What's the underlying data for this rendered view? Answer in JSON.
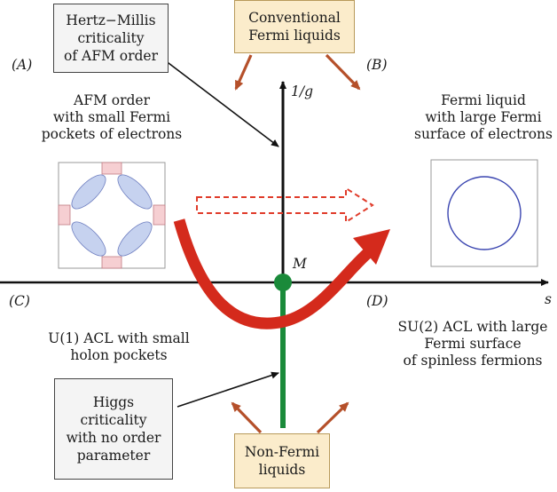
{
  "boxes": {
    "hertz_millis": "Hertz−Millis\ncriticality\nof AFM order",
    "conventional": "Conventional\nFermi liquids",
    "higgs": "Higgs\ncriticality\nwith no order\nparameter",
    "non_fermi": "Non-Fermi\nliquids"
  },
  "quadrant_labels": {
    "A": "(A)",
    "B": "(B)",
    "C": "(C)",
    "D": "(D)"
  },
  "phase_labels": {
    "afm": "AFM order\nwith small Fermi\npockets of electrons",
    "fermi_large": "Fermi liquid\nwith large Fermi\nsurface of electrons",
    "u1": "U(1) ACL with small\nholon pockets",
    "su2": "SU(2) ACL with large\nFermi surface\nof spinless fermions"
  },
  "axes": {
    "vertical": "1/g",
    "horizontal": "s",
    "point": "M"
  },
  "colors": {
    "axis": "#111111",
    "green_line": "#1a8a3a",
    "red_arrow": "#d42a1c",
    "dashed_arrow": "#e03b2a",
    "brown_arrows": "#b5502a",
    "pocket_blue": "#c6d2ef",
    "pocket_pink": "#f6cfd2",
    "circle": "#3a45b0",
    "tan_box": "#fbeccb"
  }
}
